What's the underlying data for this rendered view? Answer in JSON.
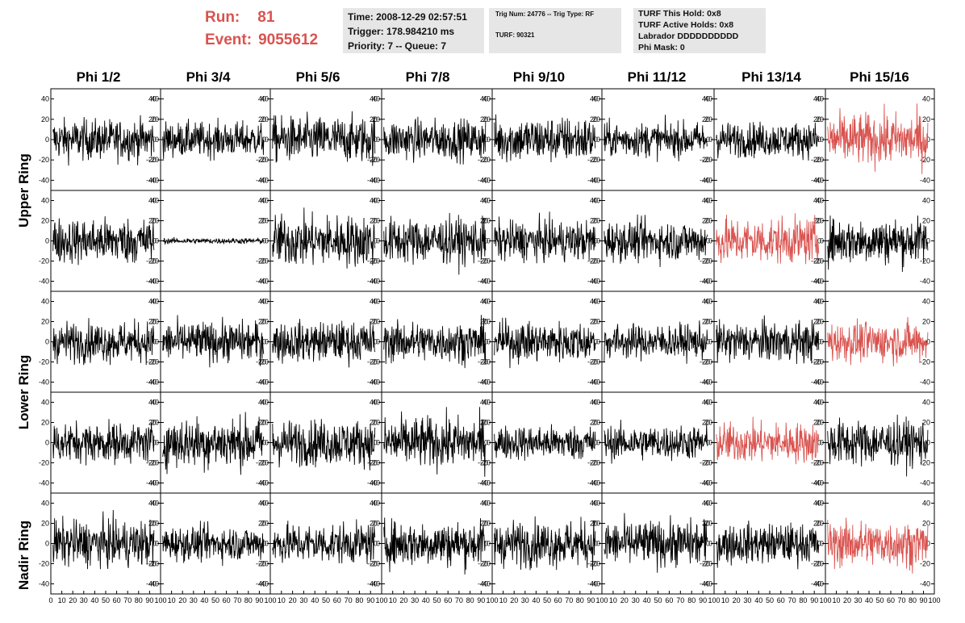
{
  "run": {
    "run_label": "Run:",
    "run_value": "81",
    "event_label": "Event:",
    "event_value": "9055612"
  },
  "info1": {
    "time": "Time: 2008-12-29 02:57:51",
    "trigger": "Trigger: 178.984210 ms",
    "priority": "Priority: 7 -- Queue: 7"
  },
  "info2": {
    "trig": "Trig Num: 24776 -- Trig Type: RF",
    "turf": "TURF: 90321"
  },
  "info3": {
    "hold": "TURF This Hold: 0x8",
    "active": "TURF Active Holds: 0x8",
    "labrador": "Labrador DDDDDDDDDD",
    "phimask": "Phi Mask: 0"
  },
  "columns": [
    "Phi 1/2",
    "Phi 3/4",
    "Phi 5/6",
    "Phi 7/8",
    "Phi 9/10",
    "Phi 11/12",
    "Phi 13/14",
    "Phi 15/16"
  ],
  "rows": [
    "Upper Ring",
    "Lower Ring",
    "Nadir Ring"
  ],
  "colors": {
    "normal": "#000000",
    "highlight": "#d9534f",
    "info_bg": "#e6e6e6",
    "title": "#d9534f"
  },
  "chart_data": {
    "type": "line",
    "layout": "5 rows x 8 columns of waveform panels",
    "xlim": [
      0,
      100
    ],
    "ylim": [
      -50,
      50
    ],
    "x_ticks": [
      "0",
      "10",
      "20",
      "30",
      "40",
      "50",
      "60",
      "70",
      "80",
      "90",
      "100"
    ],
    "y_ticks": [
      "40",
      "20",
      "0",
      "-20",
      "-40"
    ],
    "panel_rows": [
      {
        "ring": "Upper Ring",
        "amplitude": [
          14,
          12,
          16,
          14,
          16,
          12,
          12,
          18
        ],
        "highlight": [
          false,
          false,
          false,
          false,
          false,
          false,
          false,
          true
        ]
      },
      {
        "ring": "Upper Ring",
        "amplitude": [
          16,
          2,
          18,
          16,
          14,
          14,
          16,
          16
        ],
        "highlight": [
          false,
          false,
          false,
          false,
          false,
          false,
          true,
          false
        ]
      },
      {
        "ring": "Lower Ring",
        "amplitude": [
          14,
          14,
          14,
          14,
          14,
          12,
          14,
          14
        ],
        "highlight": [
          false,
          false,
          false,
          false,
          false,
          false,
          false,
          true
        ]
      },
      {
        "ring": "Lower Ring",
        "amplitude": [
          14,
          18,
          16,
          18,
          12,
          12,
          14,
          16
        ],
        "highlight": [
          false,
          false,
          false,
          false,
          false,
          false,
          true,
          false
        ]
      },
      {
        "ring": "Nadir Ring",
        "amplitude": [
          16,
          12,
          14,
          16,
          16,
          16,
          14,
          16
        ],
        "highlight": [
          false,
          false,
          false,
          false,
          false,
          false,
          false,
          true
        ]
      }
    ]
  }
}
